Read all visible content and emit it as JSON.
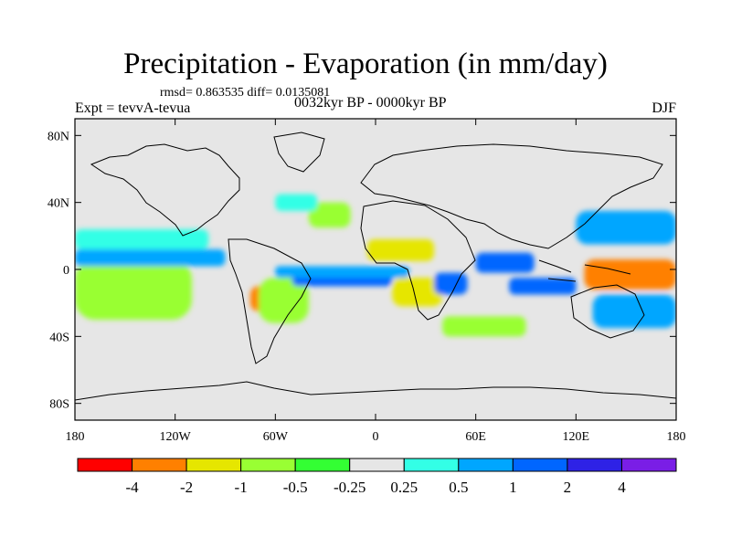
{
  "title": "Precipitation - Evaporation (in mm/day)",
  "stats": "rmsd= 0.863535 diff= 0.0135081",
  "experiment": "Expt = tevvA-tevua",
  "period": "0032kyr BP - 0000kyr BP",
  "season": "DJF",
  "map": {
    "background_color": "#e6e6e6",
    "lat_ticks": [
      "80N",
      "40N",
      "0",
      "40S",
      "80S"
    ],
    "lon_ticks": [
      "180",
      "120W",
      "60W",
      "0",
      "60E",
      "120E",
      "180"
    ]
  },
  "colorbar": {
    "colors": [
      "#ff0000",
      "#ff8000",
      "#e6e600",
      "#99ff33",
      "#33ff33",
      "#e6e6e6",
      "#33ffe6",
      "#00a6ff",
      "#0066ff",
      "#2e22e6",
      "#7a1ee6"
    ],
    "labels": [
      "-4",
      "-2",
      "-1",
      "-0.5",
      "-0.25",
      "0.25",
      "0.5",
      "1",
      "2",
      "4"
    ]
  },
  "chart_data": {
    "type": "heatmap",
    "title": "Precipitation - Evaporation (in mm/day)",
    "xlabel": "",
    "ylabel": "",
    "x_ticks": [
      "180",
      "120W",
      "60W",
      "0",
      "60E",
      "120E",
      "180"
    ],
    "y_ticks": [
      "80N",
      "40N",
      "0",
      "40S",
      "80S"
    ],
    "xlim": [
      -180,
      180
    ],
    "ylim": [
      -90,
      90
    ],
    "color_levels": [
      -4,
      -2,
      -1,
      -0.5,
      -0.25,
      0.25,
      0.5,
      1,
      2,
      4
    ],
    "patches": [
      {
        "lon": [
          -180,
          -140
        ],
        "lat": [
          -18,
          -2
        ],
        "value": -4
      },
      {
        "lon": [
          -180,
          -130
        ],
        "lat": [
          -24,
          2
        ],
        "value": -2
      },
      {
        "lon": [
          -180,
          -110
        ],
        "lat": [
          -30,
          6
        ],
        "value": -0.5
      },
      {
        "lon": [
          -180,
          -90
        ],
        "lat": [
          2,
          12
        ],
        "value": 1
      },
      {
        "lon": [
          -180,
          -100
        ],
        "lat": [
          12,
          24
        ],
        "value": 0.5
      },
      {
        "lon": [
          -75,
          -45
        ],
        "lat": [
          -25,
          -10
        ],
        "value": -2
      },
      {
        "lon": [
          -70,
          -40
        ],
        "lat": [
          -32,
          -5
        ],
        "value": -0.5
      },
      {
        "lon": [
          -50,
          10
        ],
        "lat": [
          -10,
          0
        ],
        "value": 2
      },
      {
        "lon": [
          -60,
          20
        ],
        "lat": [
          -5,
          2
        ],
        "value": 1
      },
      {
        "lon": [
          -40,
          -15
        ],
        "lat": [
          25,
          40
        ],
        "value": -0.5
      },
      {
        "lon": [
          -60,
          -35
        ],
        "lat": [
          35,
          45
        ],
        "value": 0.5
      },
      {
        "lon": [
          -5,
          35
        ],
        "lat": [
          5,
          18
        ],
        "value": -1
      },
      {
        "lon": [
          10,
          40
        ],
        "lat": [
          -22,
          -5
        ],
        "value": -1
      },
      {
        "lon": [
          35,
          55
        ],
        "lat": [
          -15,
          -2
        ],
        "value": 2
      },
      {
        "lon": [
          60,
          95
        ],
        "lat": [
          -2,
          10
        ],
        "value": 2
      },
      {
        "lon": [
          80,
          120
        ],
        "lat": [
          -15,
          -5
        ],
        "value": 2
      },
      {
        "lon": [
          130,
          175
        ],
        "lat": [
          -8,
          2
        ],
        "value": -4
      },
      {
        "lon": [
          125,
          180
        ],
        "lat": [
          -12,
          6
        ],
        "value": -2
      },
      {
        "lon": [
          120,
          180
        ],
        "lat": [
          15,
          35
        ],
        "value": 1
      },
      {
        "lon": [
          130,
          180
        ],
        "lat": [
          -35,
          -15
        ],
        "value": 1
      },
      {
        "lon": [
          40,
          90
        ],
        "lat": [
          -40,
          -28
        ],
        "value": -0.5
      }
    ]
  }
}
